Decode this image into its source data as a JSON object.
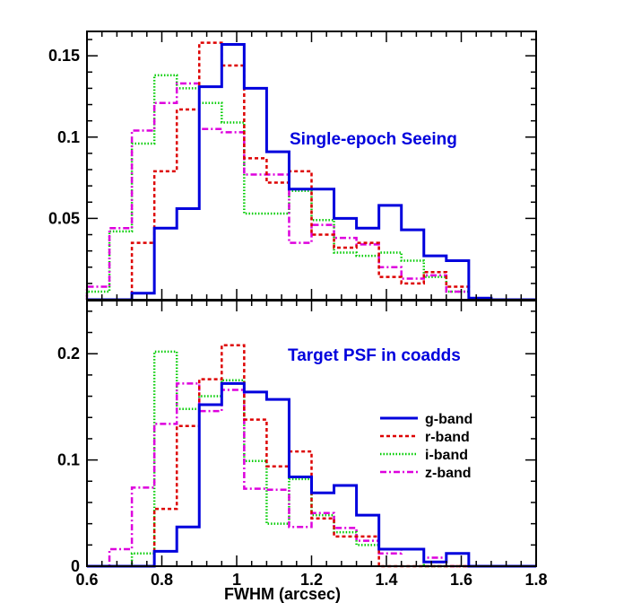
{
  "chart_data": [
    {
      "type": "histogram",
      "title": "Single-epoch Seeing",
      "xlabel": "FWHM (arcsec)",
      "ylabel": "",
      "xlim": [
        0.6,
        1.8
      ],
      "ylim": [
        0,
        0.165
      ],
      "yticks": [
        0.05,
        0.1,
        0.15
      ],
      "ytick_labels": [
        "0.05",
        "0.1",
        "0.15"
      ],
      "bin_edges": [
        0.6,
        0.66,
        0.72,
        0.78,
        0.84,
        0.9,
        0.96,
        1.02,
        1.08,
        1.14,
        1.2,
        1.26,
        1.32,
        1.38,
        1.44,
        1.5,
        1.56,
        1.62,
        1.68,
        1.74,
        1.8
      ],
      "series": [
        {
          "name": "g-band",
          "values": [
            0,
            0,
            0.004,
            0.044,
            0.056,
            0.131,
            0.157,
            0.13,
            0.091,
            0.068,
            0.068,
            0.05,
            0.044,
            0.058,
            0.043,
            0.027,
            0.024,
            0.001,
            0,
            0
          ]
        },
        {
          "name": "r-band",
          "values": [
            0,
            0,
            0.035,
            0.079,
            0.117,
            0.158,
            0.144,
            0.087,
            0.072,
            0.079,
            0.04,
            0.032,
            0.035,
            0.014,
            0.01,
            0.017,
            0.008,
            0,
            0,
            0
          ]
        },
        {
          "name": "i-band",
          "values": [
            0.005,
            0.042,
            0.096,
            0.138,
            0.13,
            0.121,
            0.109,
            0.053,
            0.053,
            0.067,
            0.049,
            0.029,
            0.027,
            0.029,
            0.024,
            0.014,
            0.005,
            0,
            0,
            0
          ]
        },
        {
          "name": "z-band",
          "values": [
            0.008,
            0.044,
            0.104,
            0.121,
            0.133,
            0.105,
            0.103,
            0.077,
            0.077,
            0.035,
            0.046,
            0.038,
            0.034,
            0.02,
            0.013,
            0.015,
            0.005,
            0,
            0,
            0
          ]
        }
      ]
    },
    {
      "type": "histogram",
      "title": "Target PSF in coadds",
      "xlabel": "FWHM (arcsec)",
      "ylabel": "",
      "xlim": [
        0.6,
        1.8
      ],
      "xticks": [
        0.6,
        0.8,
        1.0,
        1.2,
        1.4,
        1.6,
        1.8
      ],
      "xtick_labels": [
        "0.6",
        "0.8",
        "1",
        "1.2",
        "1.4",
        "1.6",
        "1.8"
      ],
      "ylim": [
        0,
        0.25
      ],
      "yticks": [
        0,
        0.1,
        0.2
      ],
      "ytick_labels": [
        "0",
        "0.1",
        "0.2"
      ],
      "bin_edges": [
        0.6,
        0.66,
        0.72,
        0.78,
        0.84,
        0.9,
        0.96,
        1.02,
        1.08,
        1.14,
        1.2,
        1.26,
        1.32,
        1.38,
        1.44,
        1.5,
        1.56,
        1.62,
        1.68,
        1.74,
        1.8
      ],
      "series": [
        {
          "name": "g-band",
          "values": [
            0,
            0,
            0,
            0.014,
            0.037,
            0.152,
            0.172,
            0.164,
            0.157,
            0.084,
            0.069,
            0.076,
            0.048,
            0.016,
            0.016,
            0.004,
            0.012,
            0,
            0,
            0
          ]
        },
        {
          "name": "r-band",
          "values": [
            0,
            0,
            0,
            0.054,
            0.132,
            0.176,
            0.208,
            0.138,
            0.094,
            0.108,
            0.045,
            0.028,
            0.028,
            0,
            0,
            0,
            0,
            0,
            0,
            0
          ]
        },
        {
          "name": "i-band",
          "values": [
            0,
            0,
            0.012,
            0.202,
            0.148,
            0.16,
            0.175,
            0.099,
            0.04,
            0.082,
            0.048,
            0.032,
            0.02,
            0.016,
            0.016,
            0,
            0,
            0,
            0,
            0
          ]
        },
        {
          "name": "z-band",
          "values": [
            0,
            0.016,
            0.074,
            0.134,
            0.172,
            0.146,
            0.166,
            0.073,
            0.072,
            0.037,
            0.05,
            0.036,
            0.024,
            0.012,
            0.016,
            0.008,
            0,
            0,
            0,
            0
          ]
        }
      ],
      "legend": {
        "position": "right",
        "entries": [
          {
            "label": "g-band",
            "color": "#0000dd",
            "style": "solid"
          },
          {
            "label": "r-band",
            "color": "#dd0000",
            "style": "dashed"
          },
          {
            "label": "i-band",
            "color": "#00cc00",
            "style": "dotted"
          },
          {
            "label": "z-band",
            "color": "#dd00dd",
            "style": "dash-dot"
          }
        ]
      }
    }
  ],
  "styles": {
    "g-band": {
      "color": "#0000dd",
      "dash": ""
    },
    "r-band": {
      "color": "#dd0000",
      "dash": "4,3"
    },
    "i-band": {
      "color": "#00cc00",
      "dash": "1.5,2"
    },
    "z-band": {
      "color": "#dd00dd",
      "dash": "7,3,2,3"
    }
  },
  "title_color": "#0000dd",
  "xlabel": "FWHM (arcsec)"
}
